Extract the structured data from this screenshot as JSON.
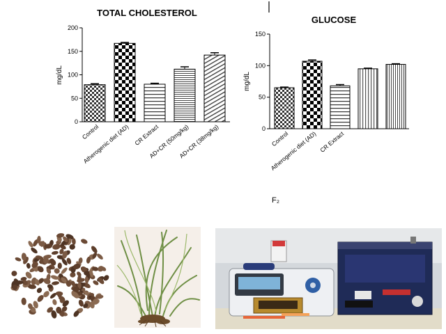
{
  "chart_data": [
    {
      "type": "bar",
      "title": "TOTAL CHOLESTEROL",
      "ylabel": "mg/dL",
      "xlabel": "",
      "ylim": [
        0,
        200
      ],
      "yticks": [
        0,
        50,
        100,
        150,
        200
      ],
      "categories": [
        "Control",
        "Atherogenic diet (AD)",
        "CR Extract",
        "AD+CR (50mg/kg)",
        "AD+CR (38mg/kg)"
      ],
      "values": [
        79,
        167,
        80,
        112,
        142
      ],
      "errors": [
        2,
        2,
        2,
        5,
        5
      ],
      "patterns": [
        "checker-small",
        "checker-large",
        "hstripes",
        "hstripes-fine",
        "dstripes"
      ]
    },
    {
      "type": "bar",
      "title": "GLUCOSE",
      "ylabel": "mg/dL",
      "xlabel": "",
      "ylim": [
        0,
        150
      ],
      "yticks": [
        0,
        50,
        100,
        150
      ],
      "categories": [
        "Control",
        "Atherogenic diet (AD)",
        "CR Extract",
        "",
        ""
      ],
      "values": [
        65,
        107,
        68,
        95,
        102
      ],
      "errors": [
        1,
        2,
        2,
        1,
        1
      ],
      "patterns": [
        "checker-small",
        "checker-large",
        "hstripes",
        "vstripes",
        "vstripes-fine"
      ]
    }
  ],
  "panel_label": "F₂",
  "photos": {
    "seeds": "seeds-photo",
    "plant": "plant-photo",
    "equipment": "equipment-photo"
  }
}
